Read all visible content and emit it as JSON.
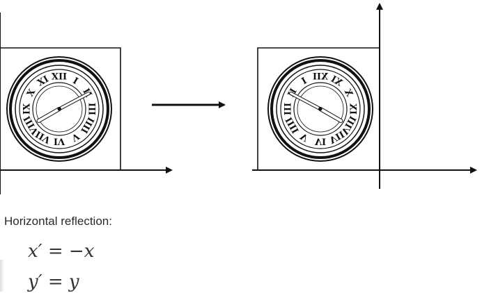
{
  "caption": "Horizontal reflection:",
  "equations": [
    {
      "lhs": "x′",
      "op": "=",
      "rhs": "−x"
    },
    {
      "lhs": "y′",
      "op": "=",
      "rhs": "y"
    }
  ],
  "clock_numerals_original": [
    "XII",
    "I",
    "II",
    "III",
    "IIII",
    "V",
    "VI",
    "VII",
    "VIII",
    "IX",
    "X",
    "XI"
  ],
  "clock_numerals_reflected": [
    "XII",
    "IX",
    "III"
  ],
  "colors": {
    "ink": "#111111",
    "background": "#ffffff",
    "text": "#2a2a2a"
  },
  "icons": {
    "transform_arrow": "right-arrow"
  }
}
